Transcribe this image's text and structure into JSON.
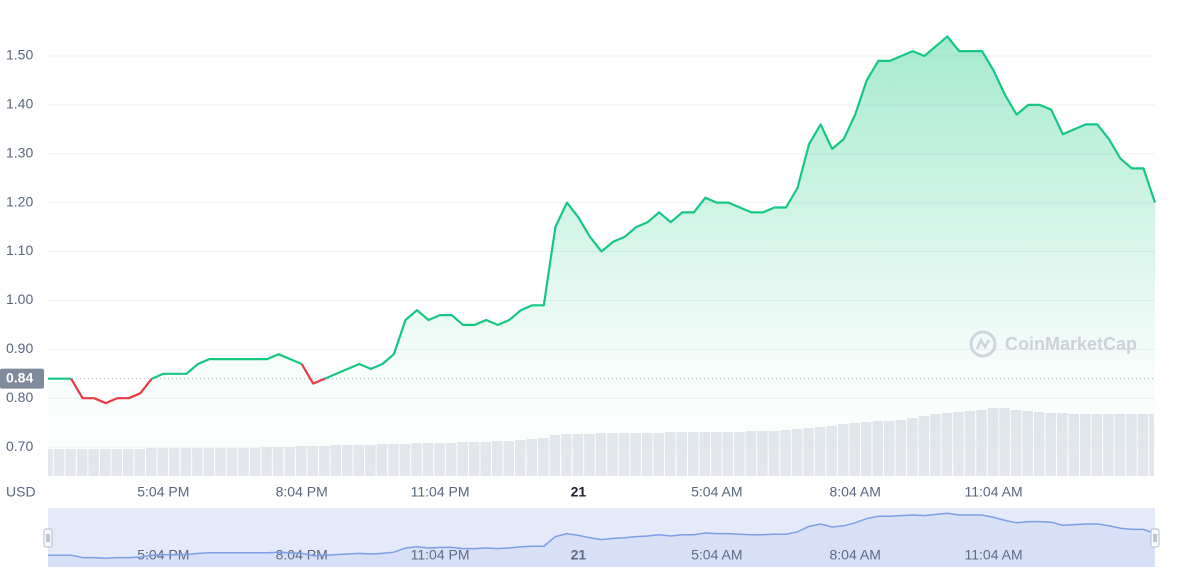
{
  "chart_data": {
    "type": "line",
    "y_label": "USD",
    "watermark": "CoinMarketCap",
    "baseline": 0.84,
    "colors": {
      "up": "#16c784",
      "down": "#ea3943",
      "volume": "#e3e6ec",
      "navigator": "#7c9fe6"
    },
    "categories": [
      null,
      null,
      null,
      null,
      null,
      null,
      null,
      null,
      null,
      null,
      "5:04 PM",
      null,
      null,
      null,
      null,
      null,
      null,
      null,
      null,
      null,
      null,
      null,
      "8:04 PM",
      null,
      null,
      null,
      null,
      null,
      null,
      null,
      null,
      null,
      null,
      null,
      "11:04 PM",
      null,
      null,
      null,
      null,
      null,
      null,
      null,
      null,
      null,
      null,
      null,
      "21",
      null,
      null,
      null,
      null,
      null,
      null,
      null,
      null,
      null,
      null,
      null,
      "5:04 AM",
      null,
      null,
      null,
      null,
      null,
      null,
      null,
      null,
      null,
      null,
      null,
      "8:04 AM",
      null,
      null,
      null,
      null,
      null,
      null,
      null,
      null,
      null,
      null,
      null,
      "11:04 AM",
      null,
      null,
      null,
      null,
      null,
      null,
      null,
      null,
      null,
      null,
      null,
      null,
      null,
      null
    ],
    "bold_categories": [
      "21"
    ],
    "series": [
      {
        "name": "Price",
        "values": [
          0.84,
          0.84,
          0.84,
          0.8,
          0.8,
          0.79,
          0.8,
          0.8,
          0.81,
          0.84,
          0.85,
          0.85,
          0.85,
          0.87,
          0.88,
          0.88,
          0.88,
          0.88,
          0.88,
          0.88,
          0.89,
          0.88,
          0.87,
          0.83,
          0.84,
          0.85,
          0.86,
          0.87,
          0.86,
          0.87,
          0.89,
          0.96,
          0.98,
          0.96,
          0.97,
          0.97,
          0.95,
          0.95,
          0.96,
          0.95,
          0.96,
          0.98,
          0.99,
          0.99,
          1.15,
          1.2,
          1.17,
          1.13,
          1.1,
          1.12,
          1.13,
          1.15,
          1.16,
          1.18,
          1.16,
          1.18,
          1.18,
          1.21,
          1.2,
          1.2,
          1.19,
          1.18,
          1.18,
          1.19,
          1.19,
          1.23,
          1.32,
          1.36,
          1.31,
          1.33,
          1.38,
          1.45,
          1.49,
          1.49,
          1.5,
          1.51,
          1.5,
          1.52,
          1.54,
          1.51,
          1.51,
          1.51,
          1.47,
          1.42,
          1.38,
          1.4,
          1.4,
          1.39,
          1.34,
          1.35,
          1.36,
          1.36,
          1.33,
          1.29,
          1.27,
          1.27,
          1.2
        ]
      },
      {
        "name": "Volume",
        "values": [
          27,
          27,
          27,
          27,
          27,
          27,
          27,
          27,
          27,
          28,
          28,
          28,
          28,
          28,
          28,
          28,
          28,
          28,
          28,
          29,
          29,
          29,
          30,
          30,
          30,
          31,
          31,
          31,
          31,
          32,
          32,
          32,
          33,
          33,
          33,
          33,
          34,
          34,
          34,
          35,
          35,
          36,
          37,
          38,
          41,
          42,
          42,
          42,
          43,
          43,
          43,
          43,
          43,
          43,
          44,
          44,
          44,
          44,
          44,
          44,
          44,
          45,
          45,
          45,
          46,
          47,
          48,
          49,
          50,
          52,
          53,
          54,
          55,
          55,
          56,
          58,
          60,
          62,
          63,
          64,
          65,
          66,
          68,
          68,
          66,
          65,
          64,
          63,
          63,
          62,
          62,
          62,
          62,
          62,
          62,
          62,
          62
        ]
      }
    ],
    "ylim": [
      0.643,
      1.594
    ],
    "yticks": [
      {
        "value": 0.7,
        "label": "0.70"
      },
      {
        "value": 0.8,
        "label": "0.80"
      },
      {
        "value": 0.9,
        "label": "0.90"
      },
      {
        "value": 1.0,
        "label": "1.00"
      },
      {
        "value": 1.1,
        "label": "1.10"
      },
      {
        "value": 1.2,
        "label": "1.20"
      },
      {
        "value": 1.3,
        "label": "1.30"
      },
      {
        "value": 1.4,
        "label": "1.40"
      },
      {
        "value": 1.5,
        "label": "1.50"
      }
    ],
    "grid": true
  }
}
